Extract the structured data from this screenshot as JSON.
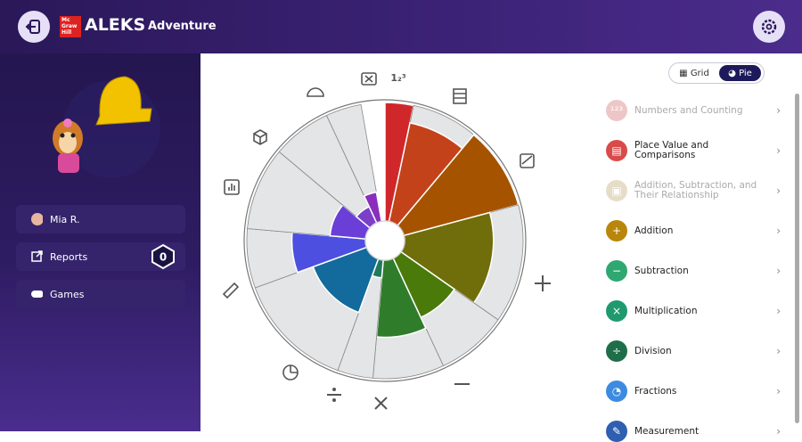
{
  "header": {
    "brand_small": "Mc Graw Hill",
    "brand": "ALEKS",
    "product": "Adventure"
  },
  "sidebar": {
    "user": "Mia R.",
    "reports": "Reports",
    "reports_count": "0",
    "games": "Games"
  },
  "view_toggle": {
    "options": [
      "Grid",
      "Pie"
    ],
    "active": "Pie"
  },
  "topics": [
    "Numbers and Counting",
    "Place Value and Comparisons",
    "Addition, Subtraction, and Their Relationship",
    "Addition",
    "Subtraction",
    "Multiplication",
    "Division",
    "Fractions",
    "Measurement"
  ],
  "chart_data": {
    "type": "rose",
    "categories": [
      null,
      null,
      null,
      null,
      null,
      null,
      null,
      null,
      null,
      null,
      null,
      null
    ],
    "spans": [
      12,
      28,
      35,
      50,
      30,
      30,
      15,
      50,
      25,
      35,
      25,
      15
    ],
    "values": [
      1,
      0.85,
      1,
      0.75,
      0.55,
      0.65,
      0.15,
      0.48,
      0.62,
      0.3,
      0.15,
      0.25
    ],
    "colors": [
      "#d0282a",
      "#c4421a",
      "#a65300",
      "#6f6e0a",
      "#4a7a0a",
      "#2f7d2a",
      "#1f7a5c",
      "#136a9c",
      "#4d4fe0",
      "#6a3fd8",
      "#7b3fc8",
      "#8a2ebd"
    ],
    "ylim": [
      0,
      1
    ]
  }
}
